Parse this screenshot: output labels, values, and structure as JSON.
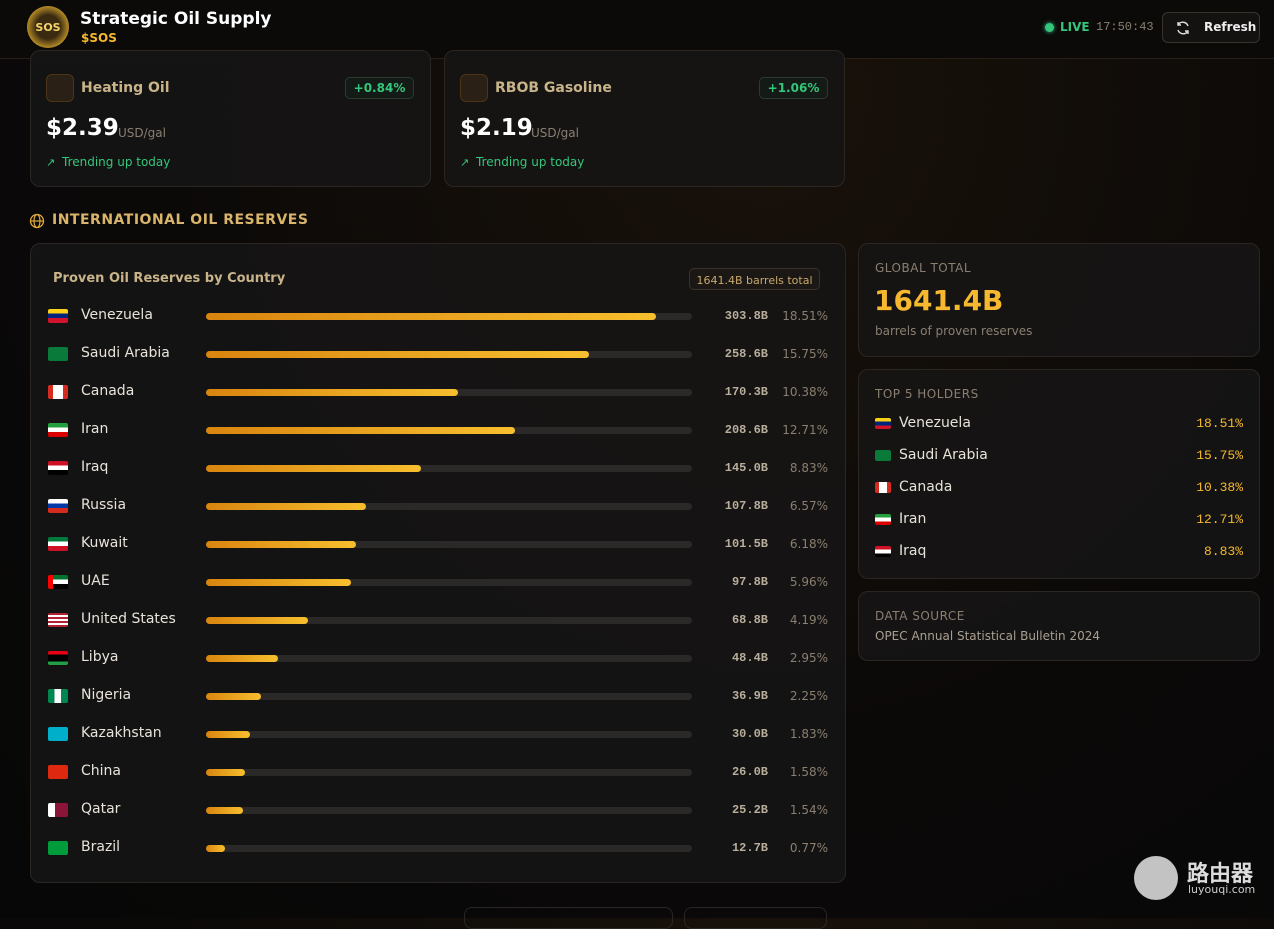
{
  "header": {
    "logo_text": "SOS",
    "title": "Strategic Oil Supply",
    "ticker": "$SOS",
    "status": "LIVE",
    "time": "17:50:43",
    "refresh": "Refresh"
  },
  "price_cards": [
    {
      "name": "Heating Oil",
      "change": "+0.84%",
      "price": "$2.39",
      "unit": "USD/gal",
      "trend": "Trending up today"
    },
    {
      "name": "RBOB Gasoline",
      "change": "+1.06%",
      "price": "$2.19",
      "unit": "USD/gal",
      "trend": "Trending up today"
    }
  ],
  "section_title": "INTERNATIONAL OIL RESERVES",
  "reserves_card": {
    "title": "Proven Oil Reserves by Country",
    "total_badge": "1641.4B barrels total",
    "rows": [
      {
        "country": "Venezuela",
        "reserves": 303.8,
        "reserves_label": "303.8B",
        "share": "18.51%"
      },
      {
        "country": "Saudi Arabia",
        "reserves": 258.6,
        "reserves_label": "258.6B",
        "share": "15.75%"
      },
      {
        "country": "Canada",
        "reserves": 170.3,
        "reserves_label": "170.3B",
        "share": "10.38%"
      },
      {
        "country": "Iran",
        "reserves": 208.6,
        "reserves_label": "208.6B",
        "share": "12.71%"
      },
      {
        "country": "Iraq",
        "reserves": 145.0,
        "reserves_label": "145.0B",
        "share": "8.83%"
      },
      {
        "country": "Russia",
        "reserves": 107.8,
        "reserves_label": "107.8B",
        "share": "6.57%"
      },
      {
        "country": "Kuwait",
        "reserves": 101.5,
        "reserves_label": "101.5B",
        "share": "6.18%"
      },
      {
        "country": "UAE",
        "reserves": 97.8,
        "reserves_label": "97.8B",
        "share": "5.96%"
      },
      {
        "country": "United States",
        "reserves": 68.8,
        "reserves_label": "68.8B",
        "share": "4.19%"
      },
      {
        "country": "Libya",
        "reserves": 48.4,
        "reserves_label": "48.4B",
        "share": "2.95%"
      },
      {
        "country": "Nigeria",
        "reserves": 36.9,
        "reserves_label": "36.9B",
        "share": "2.25%"
      },
      {
        "country": "Kazakhstan",
        "reserves": 30.0,
        "reserves_label": "30.0B",
        "share": "1.83%"
      },
      {
        "country": "China",
        "reserves": 26.0,
        "reserves_label": "26.0B",
        "share": "1.58%"
      },
      {
        "country": "Qatar",
        "reserves": 25.2,
        "reserves_label": "25.2B",
        "share": "1.54%"
      },
      {
        "country": "Brazil",
        "reserves": 12.7,
        "reserves_label": "12.7B",
        "share": "0.77%"
      }
    ]
  },
  "global_total": {
    "label": "GLOBAL TOTAL",
    "value": "1641.4B",
    "caption": "barrels of proven reserves"
  },
  "top_holders": {
    "title": "TOP 5 HOLDERS",
    "rows": [
      {
        "country": "Venezuela",
        "share": "18.51%"
      },
      {
        "country": "Saudi Arabia",
        "share": "15.75%"
      },
      {
        "country": "Canada",
        "share": "10.38%"
      },
      {
        "country": "Iran",
        "share": "12.71%"
      },
      {
        "country": "Iraq",
        "share": "8.83%"
      }
    ]
  },
  "data_source": {
    "label": "DATA SOURCE",
    "text": "OPEC Annual Statistical Bulletin 2024"
  },
  "watermark": {
    "name": "路由器",
    "url": "luyouqi.com"
  }
}
